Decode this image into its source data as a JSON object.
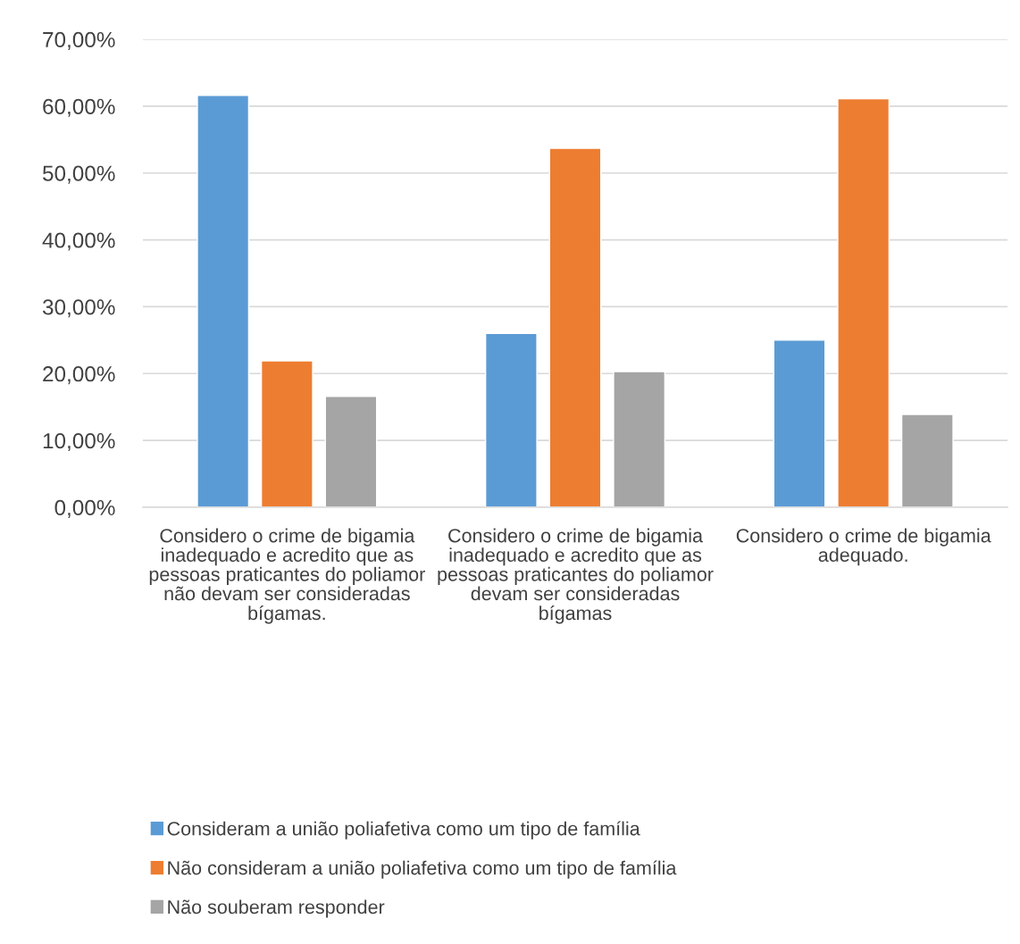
{
  "chart_data": {
    "type": "bar",
    "categories": [
      "Considero o crime de bigamia inadequado e acredito que as pessoas praticantes do poliamor não devam ser consideradas bígamas.",
      "Considero o crime de bigamia inadequado e acredito que as pessoas praticantes do poliamor devam ser consideradas bígamas",
      "Considero o crime de bigamia adequado."
    ],
    "series": [
      {
        "name": "Consideram a união poliafetiva como um tipo de família",
        "color": "#5b9bd5",
        "values": [
          61.6,
          26.0,
          25.0
        ]
      },
      {
        "name": "Não consideram a união poliafetiva como um tipo de família",
        "color": "#ed7d31",
        "values": [
          21.9,
          53.7,
          61.1
        ]
      },
      {
        "name": "Não souberam responder",
        "color": "#a5a5a5",
        "values": [
          16.6,
          20.3,
          13.9
        ]
      }
    ],
    "ylim": [
      0,
      70
    ],
    "yticks": [
      {
        "value": 0,
        "label": "0,00%"
      },
      {
        "value": 10,
        "label": "10,00%"
      },
      {
        "value": 20,
        "label": "20,00%"
      },
      {
        "value": 30,
        "label": "30,00%"
      },
      {
        "value": 40,
        "label": "40,00%"
      },
      {
        "value": 50,
        "label": "50,00%"
      },
      {
        "value": 60,
        "label": "60,00%"
      },
      {
        "value": 70,
        "label": "70,00%"
      }
    ],
    "grid": "y",
    "legend": "bottom"
  }
}
